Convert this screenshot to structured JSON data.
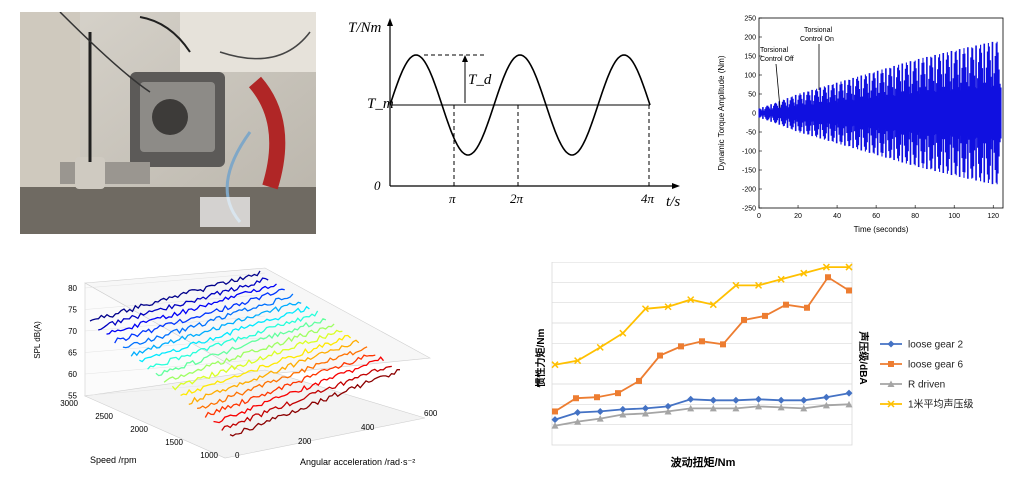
{
  "photo": {
    "kind": "test-rig-photograph"
  },
  "chart_data": [
    {
      "type": "line",
      "ylabel": "T/Nm",
      "xlabel": "t/s",
      "y_tick_labels": [
        "T_m",
        "0"
      ],
      "annotation": "T_d",
      "x_tick_labels": [
        "π",
        "2π",
        "4π"
      ],
      "series": [
        {
          "function": "sine",
          "periods": 2.5,
          "baseline": "T_m",
          "amplitude": "T_d"
        }
      ]
    },
    {
      "type": "line",
      "ylabel": "Dynamic Torque Amplitude (Nm)",
      "xlabel": "Time (seconds)",
      "xlim": [
        0,
        125
      ],
      "ylim": [
        -250,
        250
      ],
      "x_ticks": [
        "0",
        "20",
        "40",
        "60",
        "80",
        "100",
        "120"
      ],
      "y_ticks": [
        "250",
        "200",
        "150",
        "100",
        "50",
        "0",
        "-50",
        "-100",
        "-150",
        "-200",
        "-250"
      ],
      "annotations": [
        "Torsional Control Off",
        "Torsional Control On"
      ],
      "annotation_x": [
        13,
        35
      ],
      "envelope": {
        "t": [
          0,
          10,
          20,
          40,
          60,
          80,
          100,
          122
        ],
        "amplitude": [
          12,
          30,
          50,
          80,
          110,
          140,
          165,
          190
        ]
      },
      "line_color": "#1010e0"
    },
    {
      "type": "line",
      "ylabel": "SPL dB(A)",
      "xlabel": "Angular acceleration /rad·s⁻²",
      "zlabel_text": "Speed /rpm",
      "y_ticks": [
        "80",
        "75",
        "70",
        "65",
        "60",
        "55"
      ],
      "speed_ticks": [
        "3000",
        "2500",
        "2000",
        "1500",
        "1000"
      ],
      "accel_ticks": [
        "0",
        "200",
        "400",
        "600"
      ],
      "n_series": 18,
      "colormap": [
        "#00008b",
        "#0000ff",
        "#0080ff",
        "#00ffff",
        "#80ff80",
        "#ffff00",
        "#ff8000",
        "#ff0000",
        "#8b0000"
      ]
    },
    {
      "type": "line",
      "ylabel": "惯性力矩/Nm",
      "ylabel2": "声压级/dBA",
      "xlabel": "波动扭矩/Nm",
      "series": [
        {
          "name": "loose gear 2",
          "color": "#4472c4",
          "marker": "diamond",
          "values": [
            2.5,
            3.2,
            3.3,
            3.5,
            3.6,
            3.8,
            4.5,
            4.4,
            4.4,
            4.5,
            4.4,
            4.4,
            4.7,
            5.1
          ]
        },
        {
          "name": "loose gear 6",
          "color": "#ed7d31",
          "marker": "square",
          "values": [
            3.3,
            4.6,
            4.7,
            5.1,
            6.3,
            8.8,
            9.7,
            10.2,
            9.9,
            12.3,
            12.7,
            13.8,
            13.5,
            16.5,
            15.2
          ]
        },
        {
          "name": "R driven",
          "color": "#a5a5a5",
          "marker": "triangle",
          "values": [
            1.9,
            2.3,
            2.6,
            3.0,
            3.1,
            3.3,
            3.6,
            3.6,
            3.6,
            3.8,
            3.7,
            3.6,
            3.9,
            4.0
          ]
        },
        {
          "name": "1米平均声压级",
          "color": "#ffc000",
          "marker": "x",
          "values": [
            7.9,
            8.3,
            9.6,
            11.0,
            13.4,
            13.6,
            14.3,
            13.8,
            15.7,
            15.7,
            16.3,
            16.9,
            17.5,
            17.5
          ]
        }
      ],
      "ylim": [
        0,
        18
      ]
    }
  ]
}
